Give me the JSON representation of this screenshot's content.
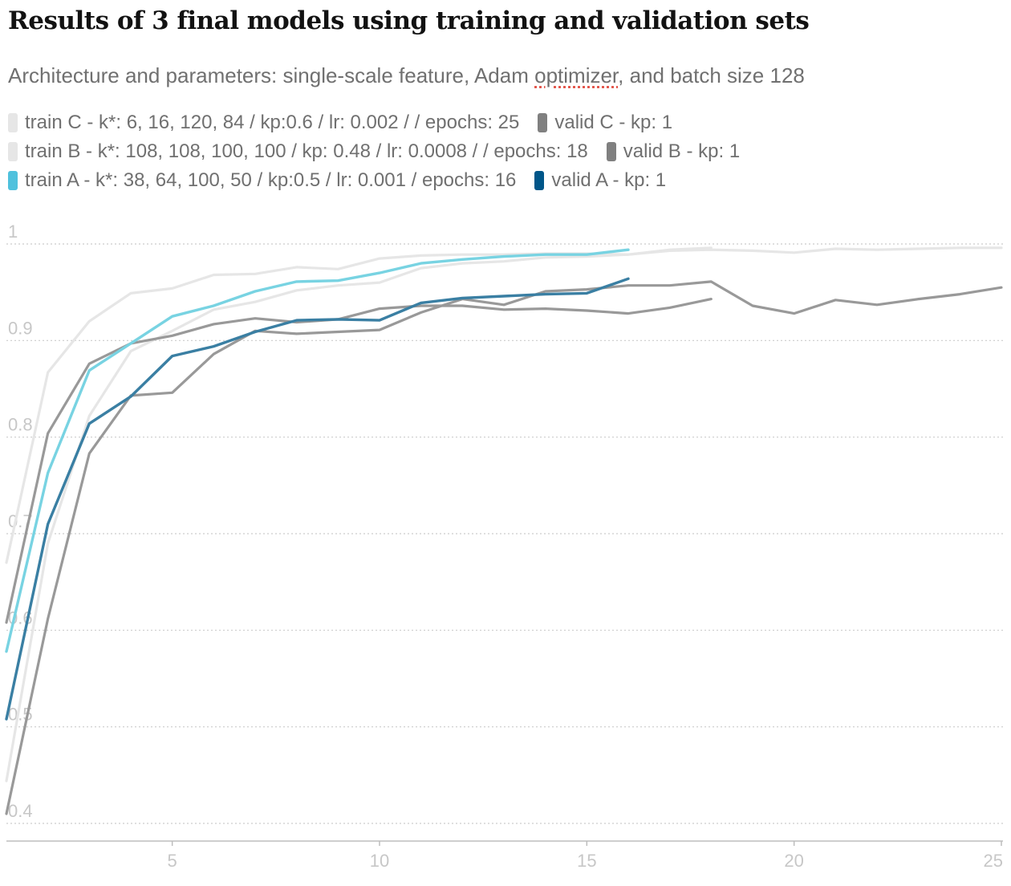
{
  "header": {
    "title": "Results of 3 final models using training and validation sets",
    "subtitle_before": "Architecture and parameters: single-scale feature, Adam ",
    "subtitle_flagged": "optimizer",
    "subtitle_after": ", and batch size 128"
  },
  "colors": {
    "train_C": "#e6e6e6",
    "valid_C": "#999999",
    "train_B": "#e6e6e6",
    "valid_B": "#999999",
    "train_A": "#78d3e2",
    "valid_A": "#3a7fa3",
    "legend_train_A": "#4fc1dd",
    "legend_valid_A": "#005689",
    "legend_valid": "#808080",
    "grid": "#cccccc",
    "tick_label": "#c7c7c7"
  },
  "chart_data": {
    "type": "line",
    "title": "Results of 3 final models using training and validation sets",
    "xlabel": "",
    "ylabel": "",
    "xlim": [
      1,
      25
    ],
    "ylim": [
      0.4,
      1
    ],
    "x_ticks": [
      5,
      10,
      15,
      20,
      25
    ],
    "y_ticks": [
      0.4,
      0.5,
      0.6,
      0.7,
      0.8,
      0.9,
      1
    ],
    "y_tick_labels": [
      "0.4",
      "0.5",
      "0.6",
      "0.7",
      "0.8",
      "0.9",
      "1"
    ],
    "grid": "horizontal dotted",
    "legend_position": "top, above plot",
    "legend_rows": [
      [
        "train C - k*: 6, 16, 120, 84 / kp:0.6 / lr: 0.002 /  / epochs: 25",
        "valid C - kp: 1"
      ],
      [
        "train B - k*: 108, 108, 100, 100 / kp: 0.48 / lr: 0.0008 /  / epochs: 18",
        "valid B - kp: 1"
      ],
      [
        "train A - k*: 38, 64, 100, 50 / kp:0.5  / lr: 0.001 / epochs: 16",
        "valid A - kp: 1"
      ]
    ],
    "series": [
      {
        "name": "train C - k*: 6, 16, 120, 84 / kp:0.6 / lr: 0.002 /  / epochs: 25",
        "x": [
          1,
          2,
          3,
          4,
          5,
          6,
          7,
          8,
          9,
          10,
          11,
          12,
          13,
          14,
          15,
          16,
          17,
          18,
          19,
          20,
          21,
          22,
          23,
          24,
          25
        ],
        "values": [
          0.67,
          0.867,
          0.92,
          0.949,
          0.954,
          0.968,
          0.969,
          0.976,
          0.974,
          0.985,
          0.988,
          0.989,
          0.989,
          0.99,
          0.99,
          0.989,
          0.993,
          0.994,
          0.993,
          0.991,
          0.995,
          0.994,
          0.995,
          0.996,
          0.996
        ]
      },
      {
        "name": "valid C - kp: 1",
        "x": [
          1,
          2,
          3,
          4,
          5,
          6,
          7,
          8,
          9,
          10,
          11,
          12,
          13,
          14,
          15,
          16,
          17,
          18,
          19,
          20,
          21,
          22,
          23,
          24,
          25
        ],
        "values": [
          0.41,
          0.612,
          0.783,
          0.843,
          0.846,
          0.886,
          0.91,
          0.907,
          0.909,
          0.911,
          0.929,
          0.943,
          0.937,
          0.951,
          0.953,
          0.957,
          0.957,
          0.961,
          0.936,
          0.928,
          0.942,
          0.937,
          0.943,
          0.948,
          0.955
        ]
      },
      {
        "name": "train B - k*: 108, 108, 100, 100 / kp: 0.48 / lr: 0.0008 /  / epochs: 18",
        "x": [
          1,
          2,
          3,
          4,
          5,
          6,
          7,
          8,
          9,
          10,
          11,
          12,
          13,
          14,
          15,
          16,
          17,
          18
        ],
        "values": [
          0.444,
          0.69,
          0.822,
          0.889,
          0.91,
          0.932,
          0.94,
          0.952,
          0.957,
          0.96,
          0.975,
          0.98,
          0.982,
          0.986,
          0.987,
          0.989,
          0.994,
          0.996
        ]
      },
      {
        "name": "valid B - kp: 1",
        "x": [
          1,
          2,
          3,
          4,
          5,
          6,
          7,
          8,
          9,
          10,
          11,
          12,
          13,
          14,
          15,
          16,
          17,
          18
        ],
        "values": [
          0.608,
          0.804,
          0.876,
          0.897,
          0.905,
          0.917,
          0.923,
          0.919,
          0.922,
          0.933,
          0.936,
          0.936,
          0.932,
          0.933,
          0.931,
          0.928,
          0.934,
          0.943
        ]
      },
      {
        "name": "train A - k*: 38, 64, 100, 50 / kp:0.5  / lr: 0.001 / epochs: 16",
        "x": [
          1,
          2,
          3,
          4,
          5,
          6,
          7,
          8,
          9,
          10,
          11,
          12,
          13,
          14,
          15,
          16
        ],
        "values": [
          0.578,
          0.763,
          0.869,
          0.897,
          0.925,
          0.936,
          0.951,
          0.961,
          0.962,
          0.97,
          0.98,
          0.984,
          0.987,
          0.989,
          0.989,
          0.994
        ]
      },
      {
        "name": "valid A - kp: 1",
        "x": [
          1,
          2,
          3,
          4,
          5,
          6,
          7,
          8,
          9,
          10,
          11,
          12,
          13,
          14,
          15,
          16
        ],
        "values": [
          0.508,
          0.71,
          0.814,
          0.842,
          0.884,
          0.894,
          0.909,
          0.921,
          0.922,
          0.921,
          0.939,
          0.944,
          0.946,
          0.948,
          0.949,
          0.964
        ]
      }
    ]
  }
}
